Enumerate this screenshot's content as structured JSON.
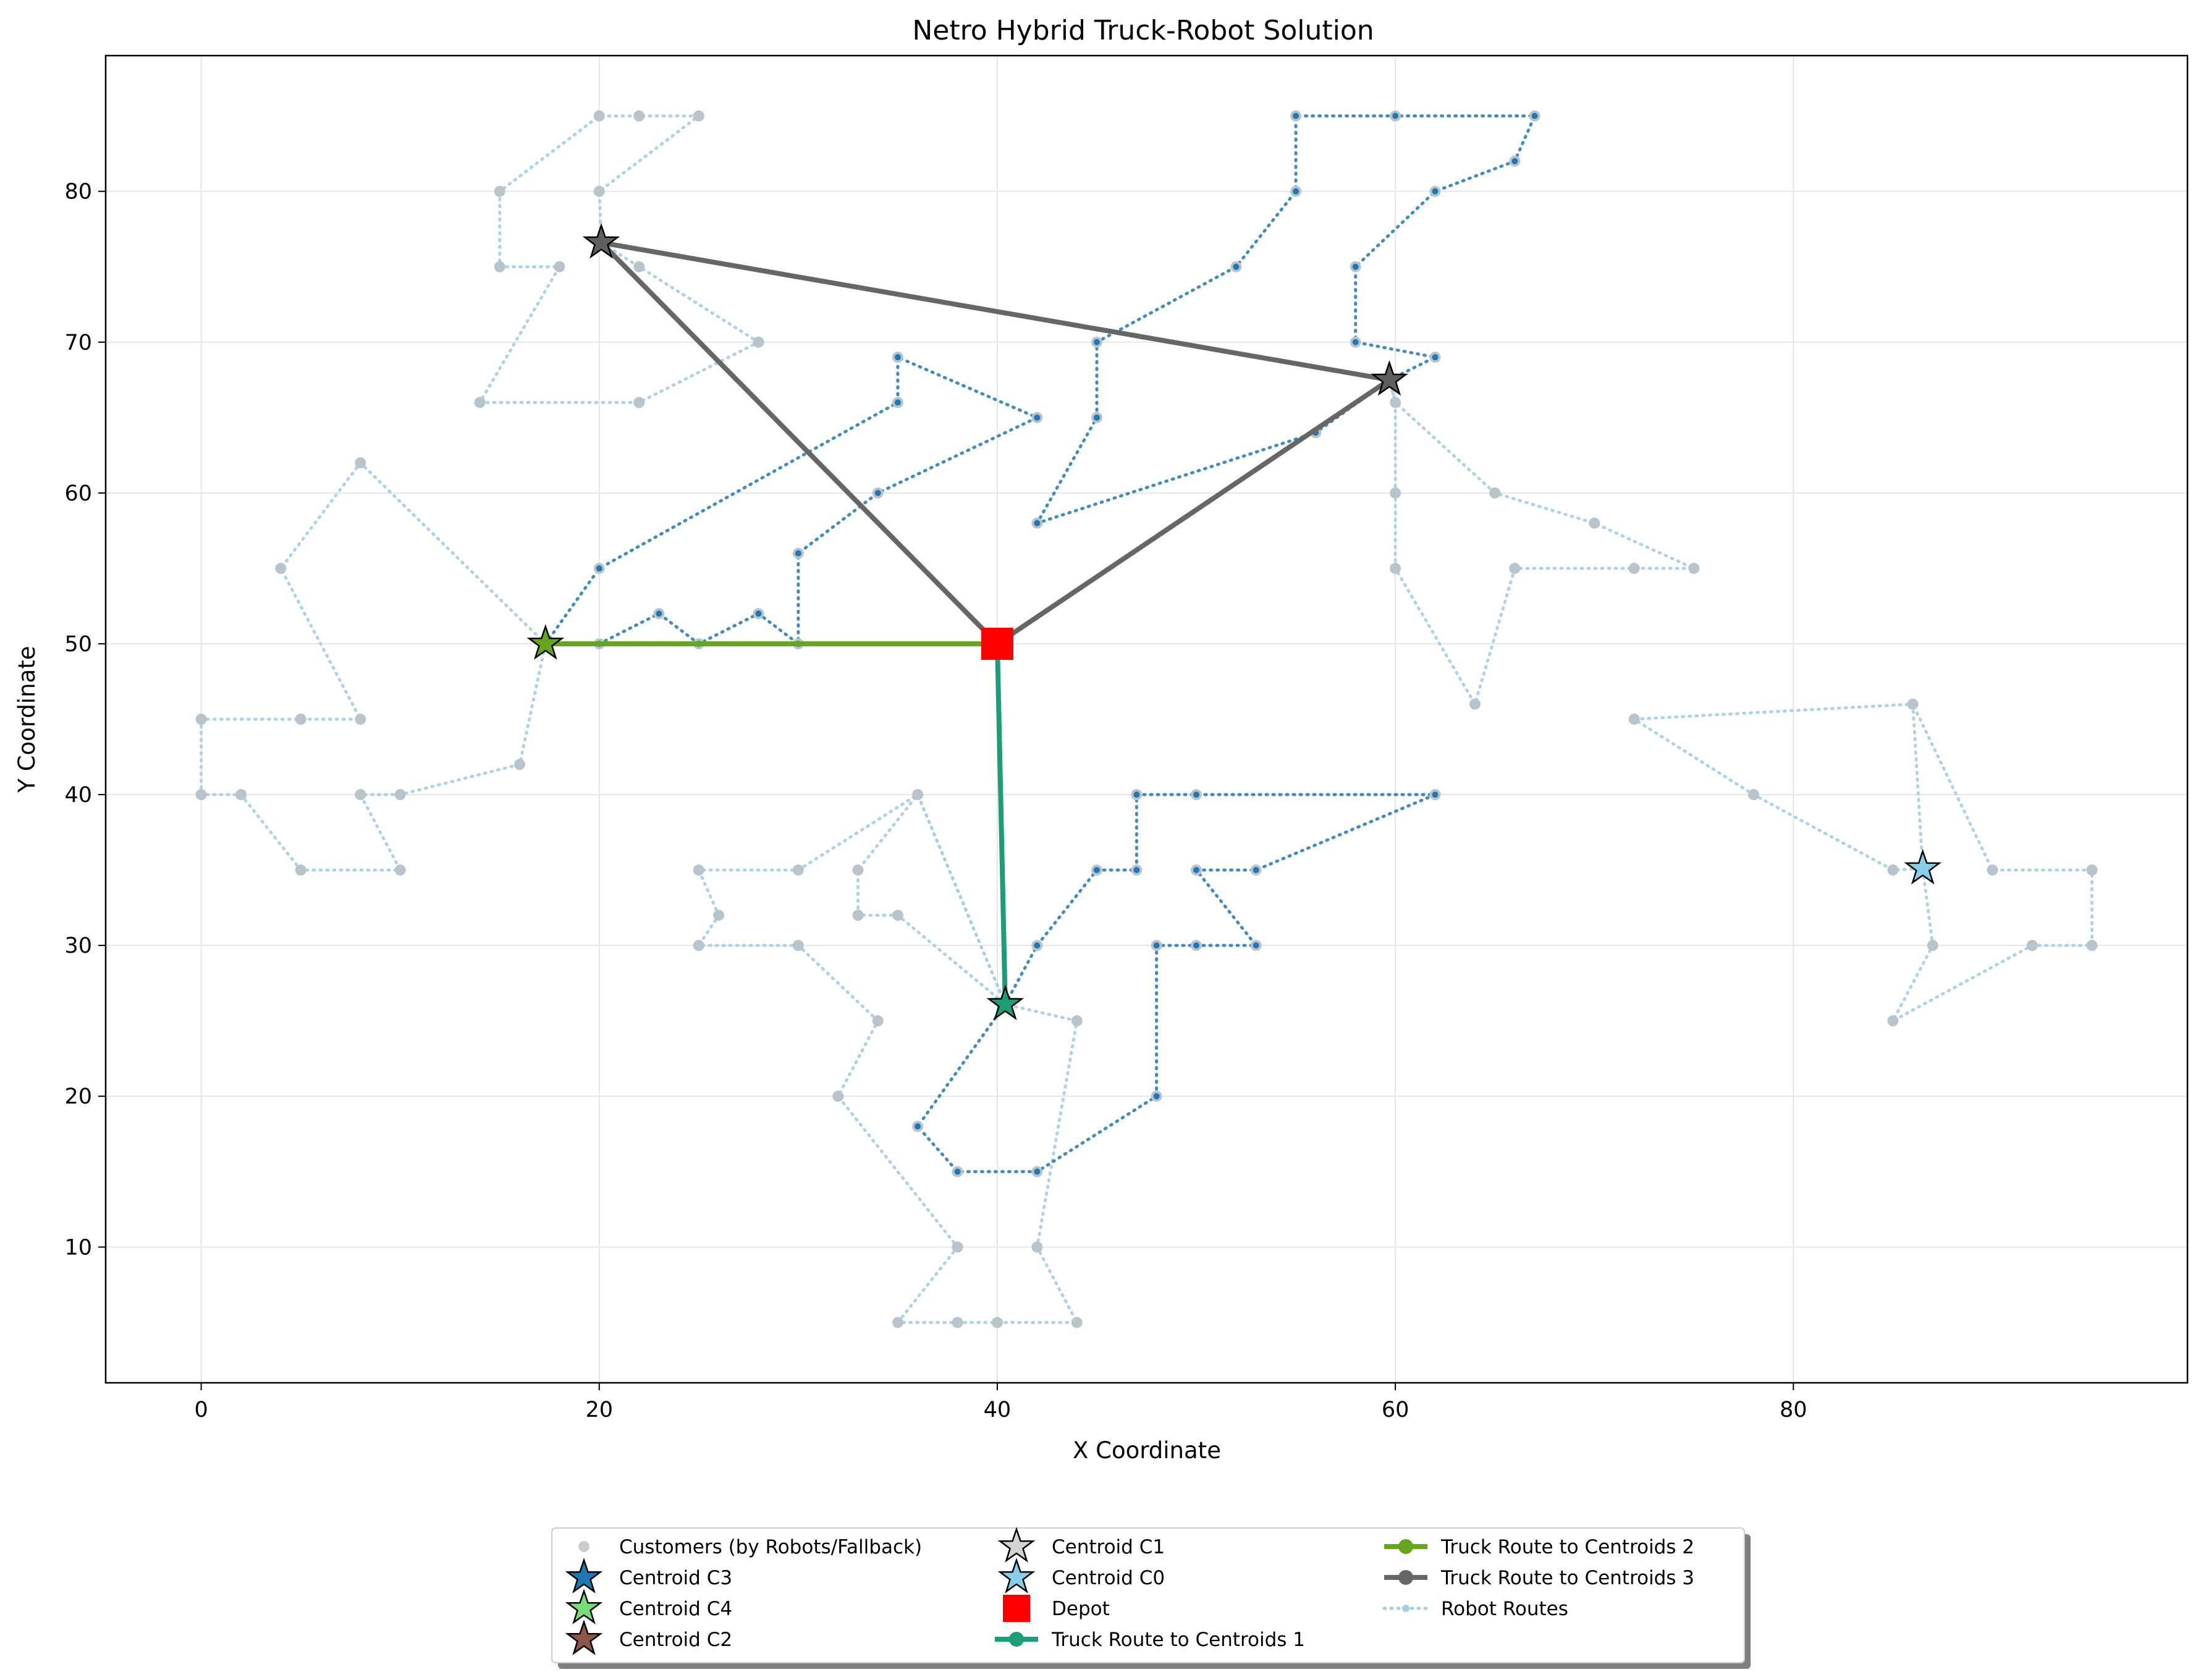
{
  "chart_data": {
    "type": "scatter",
    "title": "Netro Hybrid Truck-Robot Solution",
    "xlabel": "X Coordinate",
    "ylabel": "Y Coordinate",
    "xlim": [
      -4.8,
      99.8
    ],
    "ylim": [
      1,
      89
    ],
    "xticks": [
      0,
      20,
      40,
      60,
      80
    ],
    "yticks": [
      10,
      20,
      30,
      40,
      50,
      60,
      70,
      80
    ],
    "grid": true,
    "legend_position": "bottom-center",
    "colors": {
      "customer": "#b7c4cc",
      "robot_light": "#a6cee3",
      "robot_dark": "#1f78b4",
      "truck1": "#1b9e77",
      "truck2": "#66a61e",
      "truck3": "#666666",
      "depot": "#ff0000",
      "centroid_dark": "#5f5f5f",
      "centroid_light": "#87ceeb"
    },
    "depot": [
      40,
      50
    ],
    "centroids": [
      {
        "x": 17.3,
        "y": 50,
        "color": "#66a61e"
      },
      {
        "x": 40.4,
        "y": 26.1,
        "color": "#1b9e77"
      },
      {
        "x": 20.1,
        "y": 76.6,
        "color": "#5f5f5f"
      },
      {
        "x": 59.7,
        "y": 67.5,
        "color": "#5f5f5f"
      },
      {
        "x": 86.5,
        "y": 35.1,
        "color": "#87ceeb"
      }
    ],
    "truck_routes": [
      {
        "color": "#1b9e77",
        "points": [
          [
            40,
            50
          ],
          [
            40.4,
            26.1
          ],
          [
            40,
            50
          ]
        ]
      },
      {
        "color": "#66a61e",
        "points": [
          [
            40,
            50
          ],
          [
            17.3,
            50
          ],
          [
            40,
            50
          ]
        ]
      },
      {
        "color": "#666666",
        "points": [
          [
            40,
            50
          ],
          [
            20.1,
            76.6
          ],
          [
            59.7,
            67.5
          ],
          [
            40,
            50
          ]
        ]
      }
    ],
    "robot_routes": [
      {
        "style": "light",
        "points": [
          [
            20.1,
            76.6
          ],
          [
            20,
            80
          ],
          [
            25,
            85
          ],
          [
            22,
            85
          ],
          [
            20,
            85
          ],
          [
            15,
            80
          ],
          [
            15,
            75
          ],
          [
            18,
            75
          ],
          [
            14,
            66
          ],
          [
            22,
            66
          ],
          [
            28,
            70
          ],
          [
            22,
            75
          ],
          [
            20.1,
            76.6
          ]
        ]
      },
      {
        "style": "light",
        "points": [
          [
            17.3,
            50
          ],
          [
            8,
            62
          ],
          [
            4,
            55
          ],
          [
            8,
            45
          ],
          [
            5,
            45
          ],
          [
            0,
            45
          ],
          [
            0,
            40
          ],
          [
            2,
            40
          ],
          [
            5,
            35
          ],
          [
            10,
            35
          ],
          [
            8,
            40
          ],
          [
            10,
            40
          ],
          [
            16,
            42
          ],
          [
            17.3,
            50
          ]
        ]
      },
      {
        "style": "light",
        "points": [
          [
            40.4,
            26.1
          ],
          [
            36,
            40
          ],
          [
            33,
            35
          ],
          [
            33,
            32
          ],
          [
            35,
            32
          ],
          [
            40.4,
            26.1
          ]
        ]
      },
      {
        "style": "light",
        "points": [
          [
            40.4,
            26.1
          ],
          [
            36,
            40
          ],
          [
            30,
            35
          ],
          [
            25,
            35
          ],
          [
            26,
            32
          ],
          [
            25,
            30
          ],
          [
            30,
            30
          ],
          [
            34,
            25
          ],
          [
            32,
            20
          ],
          [
            38,
            10
          ],
          [
            35,
            5
          ],
          [
            38,
            5
          ],
          [
            40,
            5
          ],
          [
            44,
            5
          ],
          [
            42,
            10
          ],
          [
            44,
            25
          ],
          [
            40.4,
            26.1
          ]
        ]
      },
      {
        "style": "light",
        "points": [
          [
            59.7,
            67.5
          ],
          [
            60,
            66
          ],
          [
            65,
            60
          ],
          [
            70,
            58
          ],
          [
            75,
            55
          ],
          [
            72,
            55
          ],
          [
            66,
            55
          ],
          [
            64,
            46
          ],
          [
            60,
            55
          ],
          [
            60,
            60
          ],
          [
            60,
            66
          ],
          [
            59.7,
            67.5
          ]
        ]
      },
      {
        "style": "light",
        "points": [
          [
            86.5,
            35.1
          ],
          [
            86,
            46
          ],
          [
            72,
            45
          ],
          [
            78,
            40
          ],
          [
            85,
            35
          ],
          [
            86.5,
            35.1
          ],
          [
            87,
            30
          ],
          [
            85,
            25
          ],
          [
            92,
            30
          ],
          [
            95,
            30
          ],
          [
            95,
            35
          ],
          [
            90,
            35
          ],
          [
            86,
            46
          ]
        ]
      },
      {
        "style": "dark",
        "points": [
          [
            17.3,
            50
          ],
          [
            20,
            55
          ],
          [
            35,
            66
          ],
          [
            35,
            69
          ],
          [
            42,
            65
          ],
          [
            34,
            60
          ],
          [
            30,
            56
          ],
          [
            30,
            50
          ],
          [
            28,
            52
          ],
          [
            25,
            50
          ],
          [
            23,
            52
          ],
          [
            20,
            50
          ],
          [
            17.3,
            50
          ]
        ]
      },
      {
        "style": "dark",
        "points": [
          [
            59.7,
            67.5
          ],
          [
            62,
            69
          ],
          [
            58,
            70
          ],
          [
            58,
            75
          ],
          [
            62,
            80
          ],
          [
            66,
            82
          ],
          [
            67,
            85
          ],
          [
            60,
            85
          ],
          [
            55,
            85
          ],
          [
            55,
            80
          ],
          [
            52,
            75
          ],
          [
            45,
            70
          ],
          [
            45,
            65
          ],
          [
            42,
            58
          ],
          [
            56,
            64
          ],
          [
            59.7,
            67.5
          ]
        ]
      },
      {
        "style": "dark",
        "points": [
          [
            40.4,
            26.1
          ],
          [
            42,
            30
          ],
          [
            45,
            35
          ],
          [
            47,
            35
          ],
          [
            47,
            40
          ],
          [
            50,
            40
          ],
          [
            62,
            40
          ],
          [
            53,
            35
          ],
          [
            50,
            35
          ],
          [
            53,
            30
          ],
          [
            50,
            30
          ],
          [
            48,
            30
          ],
          [
            48,
            20
          ],
          [
            42,
            15
          ],
          [
            38,
            15
          ],
          [
            36,
            18
          ],
          [
            40.4,
            26.1
          ]
        ]
      }
    ],
    "legend": [
      {
        "label": "Customers (by Robots/Fallback)",
        "marker": "dot",
        "color": "#cccccc"
      },
      {
        "label": "Centroid C3",
        "marker": "star",
        "color": "#1f77b4"
      },
      {
        "label": "Centroid C4",
        "marker": "star",
        "color": "#77dd77"
      },
      {
        "label": "Centroid C2",
        "marker": "star",
        "color": "#8c564b"
      },
      {
        "label": "Centroid C1",
        "marker": "star",
        "color": "#d3d3d3"
      },
      {
        "label": "Centroid C0",
        "marker": "star",
        "color": "#87ceeb"
      },
      {
        "label": "Depot",
        "marker": "square",
        "color": "#ff0000"
      },
      {
        "label": "Truck Route to Centroids 1",
        "marker": "line",
        "color": "#1b9e77"
      },
      {
        "label": "Truck Route to Centroids 2",
        "marker": "line",
        "color": "#66a61e"
      },
      {
        "label": "Truck Route to Centroids 3",
        "marker": "line",
        "color": "#666666"
      },
      {
        "label": "Robot Routes",
        "marker": "dotted",
        "color": "#a6cee3"
      }
    ]
  }
}
